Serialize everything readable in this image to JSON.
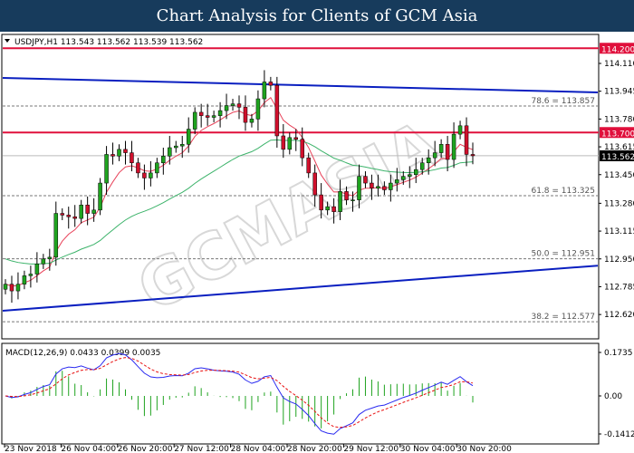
{
  "header": {
    "title": "Chart Analysis for Clients of GCM Asia"
  },
  "chart_data": {
    "type": "candlestick",
    "symbol_info": "USDJPY,H1  113.543 113.562 113.539 113.562",
    "ylim": [
      112.486,
      114.25
    ],
    "y_ticks": [
      "114.110",
      "113.945",
      "113.780",
      "113.615",
      "113.450",
      "113.280",
      "113.115",
      "112.950",
      "112.785",
      "112.620",
      "112.455"
    ],
    "x_ticks": [
      "23 Nov 2018",
      "26 Nov 04:00",
      "26 Nov 20:00",
      "27 Nov 12:00",
      "28 Nov 04:00",
      "28 Nov 20:00",
      "29 Nov 12:00",
      "30 Nov 04:00",
      "30 Nov 20:00"
    ],
    "closes": [
      112.8,
      112.76,
      112.8,
      112.85,
      112.86,
      112.92,
      112.95,
      112.96,
      113.22,
      113.21,
      113.2,
      113.19,
      113.27,
      113.22,
      113.24,
      113.4,
      113.57,
      113.56,
      113.6,
      113.58,
      113.52,
      113.46,
      113.43,
      113.46,
      113.52,
      113.56,
      113.61,
      113.62,
      113.63,
      113.72,
      113.82,
      113.8,
      113.79,
      113.8,
      113.83,
      113.86,
      113.87,
      113.85,
      113.76,
      113.78,
      113.9,
      114.0,
      113.98,
      113.68,
      113.6,
      113.67,
      113.66,
      113.55,
      113.46,
      113.33,
      113.24,
      113.26,
      113.23,
      113.35,
      113.3,
      113.3,
      113.44,
      113.4,
      113.37,
      113.38,
      113.36,
      113.4,
      113.42,
      113.44,
      113.45,
      113.48,
      113.52,
      113.55,
      113.58,
      113.63,
      113.54,
      113.69,
      113.74,
      113.57,
      113.562
    ],
    "levels": [
      {
        "label": "114.200",
        "value": 114.2,
        "color": "#e0103c",
        "style": "solid"
      },
      {
        "label": "113.700",
        "value": 113.7,
        "color": "#e0103c",
        "style": "solid"
      },
      {
        "label": "113.562",
        "value": 113.562,
        "color": "#000000",
        "style": "current"
      }
    ],
    "fibonacci": [
      {
        "label": "78.6 = 113.857",
        "value": 113.857
      },
      {
        "label": "61.8 = 113.325",
        "value": 113.325
      },
      {
        "label": "50.0 = 112.951",
        "value": 112.951
      },
      {
        "label": "38.2 = 112.577",
        "value": 112.577
      }
    ],
    "channel": {
      "upper": [
        114.024,
        113.938
      ],
      "lower": [
        112.642,
        112.91
      ],
      "color": "#0a1fc0"
    },
    "ma_colors": {
      "fast": "#e8435a",
      "slow": "#3cb36a"
    },
    "candle_colors": {
      "up": "#1fa31f",
      "down": "#d0102c"
    },
    "macd": {
      "label": "MACD(12,26,9) 0.0433 0.0399 0.0035",
      "ylim": [
        -0.1412,
        0.1735
      ],
      "y_ticks": [
        "0.1735",
        "0.00",
        "-0.1412"
      ],
      "colors": {
        "macd": "#2a2af0",
        "signal": "#e81010",
        "hist": "#1fa31f"
      }
    },
    "watermark": "GCMASIA"
  }
}
